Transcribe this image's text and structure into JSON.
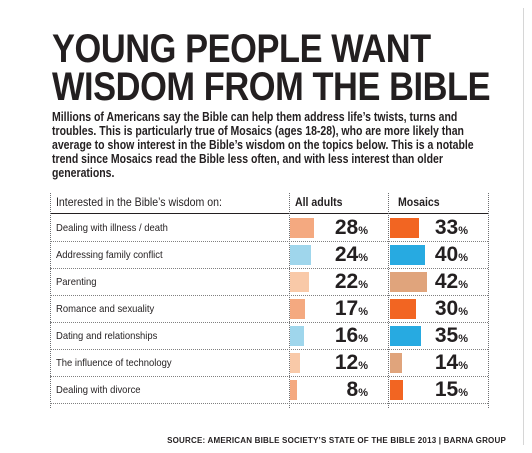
{
  "title_lines": [
    "YOUNG PEOPLE WANT",
    "WISDOM FROM THE BIBLE"
  ],
  "intro": "Millions of Americans say the Bible can help them address life’s twists, turns and troubles. This is particularly true of Mosaics (ages 18-28), who are more likely than average to show interest in the Bible’s wisdom on the topics below. This is a notable trend since Mosaics read the Bible less often, and with less interest than older generations.",
  "source": "SOURCE: AMERICAN BIBLE SOCIETY’S STATE OF THE BIBLE 2013 | BARNA GROUP",
  "percent_symbol": "%",
  "colors": {
    "salmon": "#f4a980",
    "sky": "#9fd6ec",
    "peach": "#f9c9a8",
    "orange": "#f26522",
    "teal": "#27aae1",
    "tan": "#e0a47c",
    "text": "#231f20"
  },
  "chart_data": {
    "type": "table",
    "header_label": "Interested in the Bible’s wisdom on:",
    "series": [
      {
        "name": "All adults",
        "values": [
          28,
          24,
          22,
          17,
          16,
          12,
          8
        ],
        "colors": [
          "salmon",
          "sky",
          "peach",
          "salmon",
          "sky",
          "peach",
          "salmon"
        ]
      },
      {
        "name": "Mosaics",
        "values": [
          33,
          40,
          42,
          30,
          35,
          14,
          15
        ],
        "colors": [
          "orange",
          "teal",
          "tan",
          "orange",
          "teal",
          "tan",
          "orange"
        ]
      }
    ],
    "categories": [
      "Dealing with illness / death",
      "Addressing family conflict",
      "Parenting",
      "Romance and sexuality",
      "Dating and relationships",
      "The influence of technology",
      "Dealing with divorce"
    ],
    "value_unit": "%"
  }
}
